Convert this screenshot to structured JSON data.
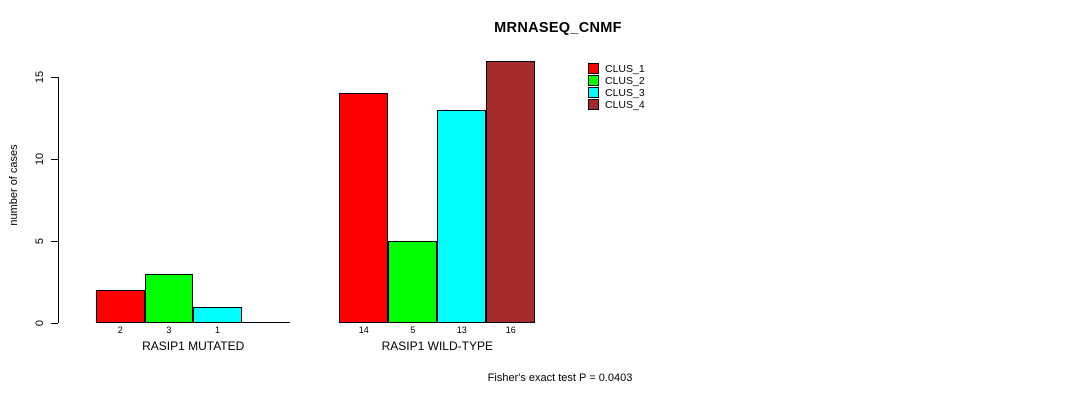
{
  "chart_data": {
    "type": "bar",
    "title": "MRNASEQ_CNMF",
    "ylabel": "number of cases",
    "annotation": "Fisher's exact test P = 0.0403",
    "yticks": [
      0,
      5,
      10,
      15
    ],
    "ylim": [
      0,
      16.5
    ],
    "grid": false,
    "legend_position": "top-right",
    "text_color": "#000000",
    "series_colors": [
      "#ff0000",
      "#00ff00",
      "#00ffff",
      "#a52a2a"
    ],
    "legend_entries": [
      "CLUS_1",
      "CLUS_2",
      "CLUS_3",
      "CLUS_4"
    ],
    "groups": [
      {
        "label": "RASIP1 MUTATED",
        "values": [
          2,
          3,
          1,
          0
        ],
        "bar_labels": [
          "2",
          "3",
          "1",
          ""
        ]
      },
      {
        "label": "RASIP1 WILD-TYPE",
        "values": [
          14,
          5,
          13,
          16
        ],
        "bar_labels": [
          "14",
          "5",
          "13",
          "16"
        ]
      }
    ]
  }
}
